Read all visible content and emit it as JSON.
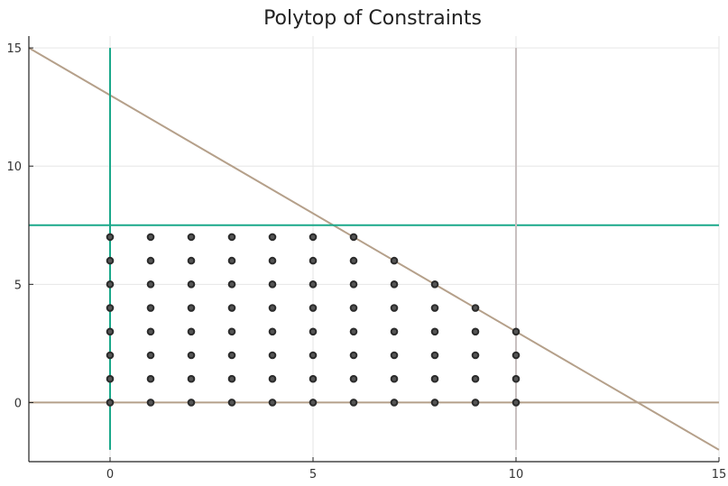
{
  "chart_data": {
    "type": "line",
    "title": "Polytop of Constraints",
    "xlabel": "",
    "ylabel": "",
    "xlim": [
      -2,
      15
    ],
    "ylim": [
      -2.5,
      15.5
    ],
    "xticks": [
      0,
      5,
      10,
      15
    ],
    "yticks": [
      0,
      5,
      10,
      15
    ],
    "grid": true,
    "legend": "none",
    "series": [
      {
        "color": "#b5a08a",
        "x": [
          -2,
          15
        ],
        "y": [
          15,
          -2
        ]
      },
      {
        "color": "#b5a08a",
        "x": [
          -2,
          15
        ],
        "y": [
          0,
          0
        ]
      },
      {
        "color": "#1aa88a",
        "x": [
          -2,
          15
        ],
        "y": [
          7.5,
          7.5
        ]
      },
      {
        "color": "#1aa88a",
        "x": [
          0,
          0
        ],
        "y": [
          -2,
          15
        ]
      },
      {
        "color": "#c8c0c0",
        "x": [
          10,
          10
        ],
        "y": [
          -2,
          15
        ]
      }
    ],
    "scatter": {
      "color": "#2b2b2b",
      "points": [
        [
          0,
          0
        ],
        [
          0,
          1
        ],
        [
          0,
          2
        ],
        [
          0,
          3
        ],
        [
          0,
          4
        ],
        [
          0,
          5
        ],
        [
          0,
          6
        ],
        [
          0,
          7
        ],
        [
          1,
          0
        ],
        [
          1,
          1
        ],
        [
          1,
          2
        ],
        [
          1,
          3
        ],
        [
          1,
          4
        ],
        [
          1,
          5
        ],
        [
          1,
          6
        ],
        [
          1,
          7
        ],
        [
          2,
          0
        ],
        [
          2,
          1
        ],
        [
          2,
          2
        ],
        [
          2,
          3
        ],
        [
          2,
          4
        ],
        [
          2,
          5
        ],
        [
          2,
          6
        ],
        [
          2,
          7
        ],
        [
          3,
          0
        ],
        [
          3,
          1
        ],
        [
          3,
          2
        ],
        [
          3,
          3
        ],
        [
          3,
          4
        ],
        [
          3,
          5
        ],
        [
          3,
          6
        ],
        [
          3,
          7
        ],
        [
          4,
          0
        ],
        [
          4,
          1
        ],
        [
          4,
          2
        ],
        [
          4,
          3
        ],
        [
          4,
          4
        ],
        [
          4,
          5
        ],
        [
          4,
          6
        ],
        [
          4,
          7
        ],
        [
          5,
          0
        ],
        [
          5,
          1
        ],
        [
          5,
          2
        ],
        [
          5,
          3
        ],
        [
          5,
          4
        ],
        [
          5,
          5
        ],
        [
          5,
          6
        ],
        [
          5,
          7
        ],
        [
          6,
          0
        ],
        [
          6,
          1
        ],
        [
          6,
          2
        ],
        [
          6,
          3
        ],
        [
          6,
          4
        ],
        [
          6,
          5
        ],
        [
          6,
          6
        ],
        [
          6,
          7
        ],
        [
          7,
          0
        ],
        [
          7,
          1
        ],
        [
          7,
          2
        ],
        [
          7,
          3
        ],
        [
          7,
          4
        ],
        [
          7,
          5
        ],
        [
          7,
          6
        ],
        [
          8,
          0
        ],
        [
          8,
          1
        ],
        [
          8,
          2
        ],
        [
          8,
          3
        ],
        [
          8,
          4
        ],
        [
          8,
          5
        ],
        [
          9,
          0
        ],
        [
          9,
          1
        ],
        [
          9,
          2
        ],
        [
          9,
          3
        ],
        [
          9,
          4
        ],
        [
          10,
          0
        ],
        [
          10,
          1
        ],
        [
          10,
          2
        ],
        [
          10,
          3
        ]
      ]
    }
  }
}
